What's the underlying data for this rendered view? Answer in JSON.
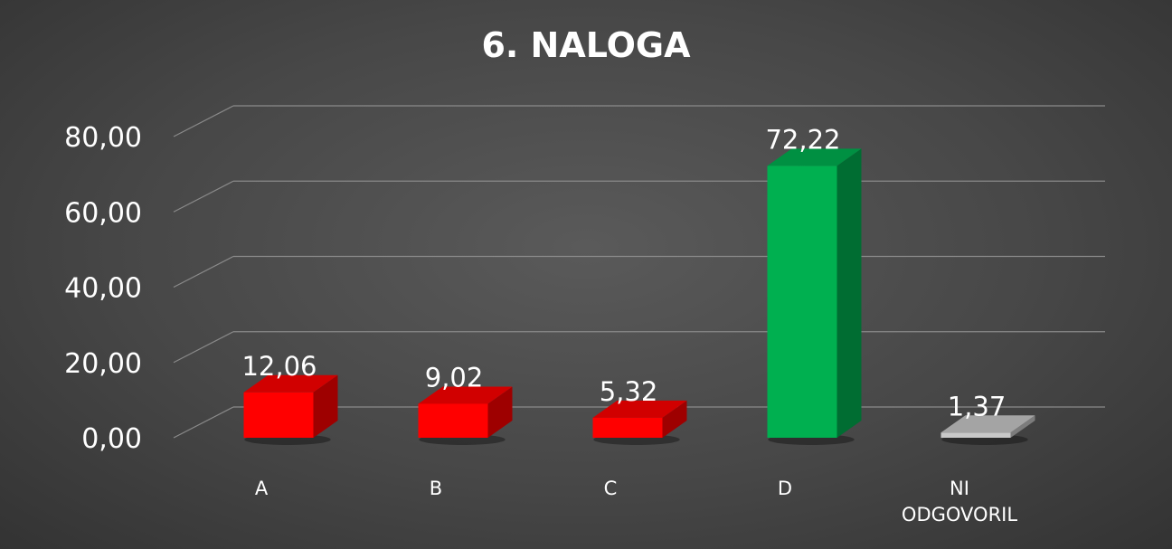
{
  "chart_data": {
    "type": "bar",
    "title": "6. NALOGA",
    "categories": [
      "A",
      "B",
      "C",
      "D",
      "NI ODGOVORIL"
    ],
    "category_lines": [
      [
        "A"
      ],
      [
        "B"
      ],
      [
        "C"
      ],
      [
        "D"
      ],
      [
        "NI",
        "ODGOVORIL"
      ]
    ],
    "values": [
      12.06,
      9.02,
      5.32,
      72.22,
      1.37
    ],
    "value_labels": [
      "12,06",
      "9,02",
      "5,32",
      "72,22",
      "1,37"
    ],
    "colors": [
      "#ff0000",
      "#ff0000",
      "#ff0000",
      "#00b050",
      "#c8c8c8"
    ],
    "yticks": [
      "0,00",
      "20,00",
      "40,00",
      "60,00",
      "80,00"
    ],
    "ylim": [
      0,
      80
    ],
    "grid": true,
    "style": "3d-column",
    "legend": "none",
    "xlabel": "",
    "ylabel": ""
  }
}
